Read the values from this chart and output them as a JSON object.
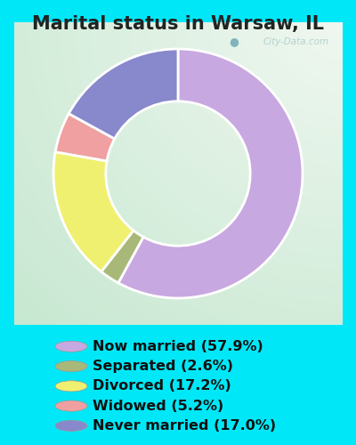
{
  "title": "Marital status in Warsaw, IL",
  "slices": [
    57.9,
    2.6,
    17.2,
    5.2,
    17.0
  ],
  "labels": [
    "Now married (57.9%)",
    "Separated (2.6%)",
    "Divorced (17.2%)",
    "Widowed (5.2%)",
    "Never married (17.0%)"
  ],
  "colors": [
    "#c8a8e0",
    "#a8b878",
    "#f0f070",
    "#f0a0a0",
    "#8888cc"
  ],
  "background_cyan": "#00e8f8",
  "title_fontsize": 15,
  "legend_fontsize": 11.5,
  "watermark": "City-Data.com",
  "start_angle": 90,
  "donut_width": 0.42
}
